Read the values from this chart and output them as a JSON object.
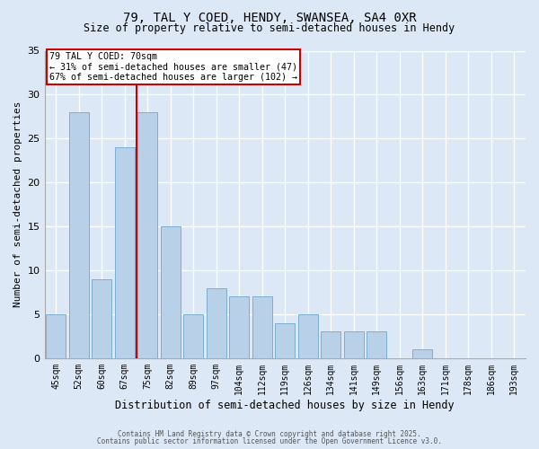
{
  "title_line1": "79, TAL Y COED, HENDY, SWANSEA, SA4 0XR",
  "title_line2": "Size of property relative to semi-detached houses in Hendy",
  "xlabel": "Distribution of semi-detached houses by size in Hendy",
  "ylabel": "Number of semi-detached properties",
  "categories": [
    "45sqm",
    "52sqm",
    "60sqm",
    "67sqm",
    "75sqm",
    "82sqm",
    "89sqm",
    "97sqm",
    "104sqm",
    "112sqm",
    "119sqm",
    "126sqm",
    "134sqm",
    "141sqm",
    "149sqm",
    "156sqm",
    "163sqm",
    "171sqm",
    "178sqm",
    "186sqm",
    "193sqm"
  ],
  "values": [
    5,
    28,
    9,
    24,
    28,
    15,
    5,
    8,
    7,
    7,
    4,
    5,
    3,
    3,
    3,
    0,
    1,
    0,
    0,
    0,
    0
  ],
  "bar_color": "#b8d0e8",
  "bar_edgecolor": "#7aaed0",
  "background_color": "#dce8f5",
  "grid_color": "#ffffff",
  "vline_x": 3.5,
  "vline_color": "#cc0000",
  "annotation_title": "79 TAL Y COED: 70sqm",
  "annotation_line2": "← 31% of semi-detached houses are smaller (47)",
  "annotation_line3": "67% of semi-detached houses are larger (102) →",
  "annotation_box_facecolor": "#ffffff",
  "annotation_box_edgecolor": "#cc0000",
  "ylim": [
    0,
    35
  ],
  "yticks": [
    0,
    5,
    10,
    15,
    20,
    25,
    30,
    35
  ],
  "footer_line1": "Contains HM Land Registry data © Crown copyright and database right 2025.",
  "footer_line2": "Contains public sector information licensed under the Open Government Licence v3.0."
}
